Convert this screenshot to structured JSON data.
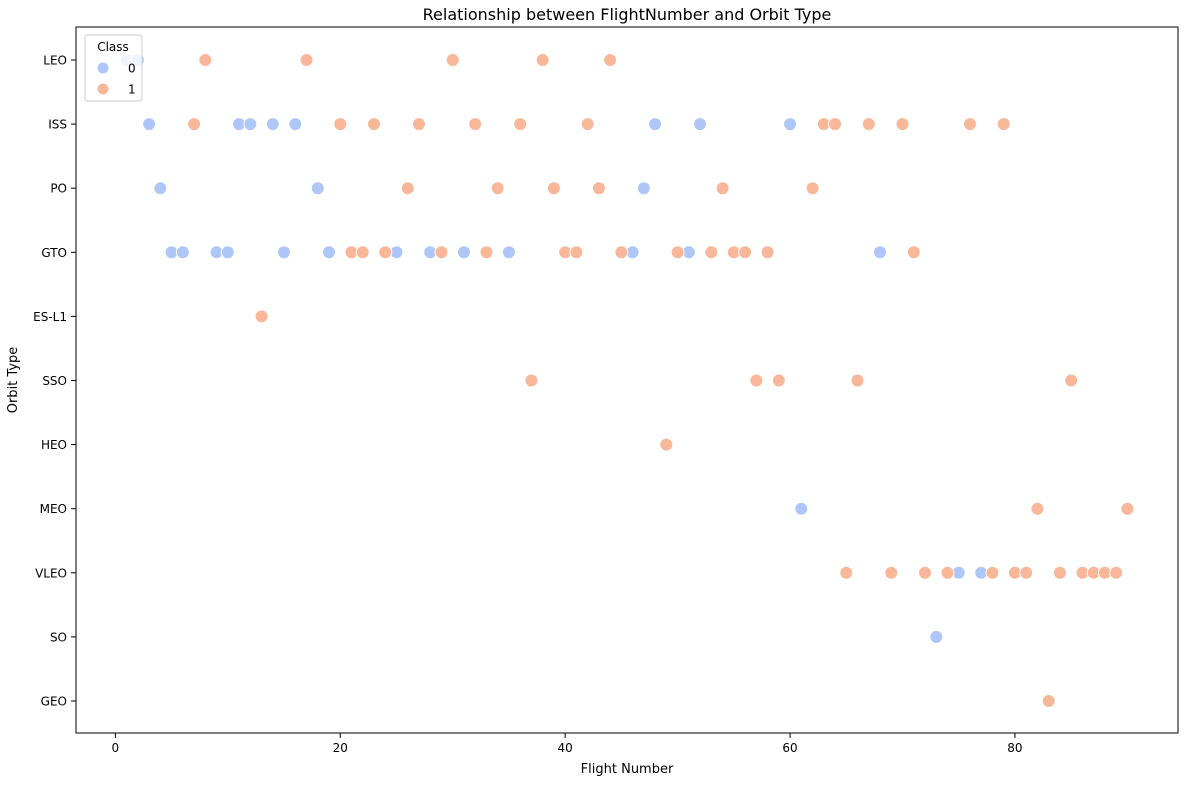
{
  "chart_data": {
    "type": "scatter",
    "title": "Relationship between FlightNumber and Orbit Type",
    "xlabel": "Flight Number",
    "ylabel": "Orbit Type",
    "xlim": [
      -3.5,
      94.5
    ],
    "x_ticks": [
      0,
      20,
      40,
      60,
      80
    ],
    "categories": [
      "LEO",
      "ISS",
      "PO",
      "GTO",
      "ES-L1",
      "SSO",
      "HEO",
      "MEO",
      "VLEO",
      "SO",
      "GEO"
    ],
    "grid": false,
    "legend": {
      "title": "Class",
      "placement": "top-left"
    },
    "colors": {
      "0": "#aec7f8",
      "1": "#f7b798"
    },
    "series": [
      {
        "name": "0",
        "points": [
          {
            "x": 1,
            "y": "LEO"
          },
          {
            "x": 2,
            "y": "LEO"
          },
          {
            "x": 3,
            "y": "ISS"
          },
          {
            "x": 11,
            "y": "ISS"
          },
          {
            "x": 12,
            "y": "ISS"
          },
          {
            "x": 14,
            "y": "ISS"
          },
          {
            "x": 16,
            "y": "ISS"
          },
          {
            "x": 48,
            "y": "ISS"
          },
          {
            "x": 52,
            "y": "ISS"
          },
          {
            "x": 60,
            "y": "ISS"
          },
          {
            "x": 4,
            "y": "PO"
          },
          {
            "x": 18,
            "y": "PO"
          },
          {
            "x": 47,
            "y": "PO"
          },
          {
            "x": 5,
            "y": "GTO"
          },
          {
            "x": 6,
            "y": "GTO"
          },
          {
            "x": 9,
            "y": "GTO"
          },
          {
            "x": 10,
            "y": "GTO"
          },
          {
            "x": 15,
            "y": "GTO"
          },
          {
            "x": 19,
            "y": "GTO"
          },
          {
            "x": 25,
            "y": "GTO"
          },
          {
            "x": 28,
            "y": "GTO"
          },
          {
            "x": 31,
            "y": "GTO"
          },
          {
            "x": 35,
            "y": "GTO"
          },
          {
            "x": 46,
            "y": "GTO"
          },
          {
            "x": 51,
            "y": "GTO"
          },
          {
            "x": 68,
            "y": "GTO"
          },
          {
            "x": 61,
            "y": "MEO"
          },
          {
            "x": 75,
            "y": "VLEO"
          },
          {
            "x": 77,
            "y": "VLEO"
          },
          {
            "x": 73,
            "y": "SO"
          }
        ]
      },
      {
        "name": "1",
        "points": [
          {
            "x": 8,
            "y": "LEO"
          },
          {
            "x": 17,
            "y": "LEO"
          },
          {
            "x": 30,
            "y": "LEO"
          },
          {
            "x": 38,
            "y": "LEO"
          },
          {
            "x": 44,
            "y": "LEO"
          },
          {
            "x": 7,
            "y": "ISS"
          },
          {
            "x": 20,
            "y": "ISS"
          },
          {
            "x": 23,
            "y": "ISS"
          },
          {
            "x": 27,
            "y": "ISS"
          },
          {
            "x": 32,
            "y": "ISS"
          },
          {
            "x": 36,
            "y": "ISS"
          },
          {
            "x": 42,
            "y": "ISS"
          },
          {
            "x": 63,
            "y": "ISS"
          },
          {
            "x": 64,
            "y": "ISS"
          },
          {
            "x": 67,
            "y": "ISS"
          },
          {
            "x": 70,
            "y": "ISS"
          },
          {
            "x": 76,
            "y": "ISS"
          },
          {
            "x": 79,
            "y": "ISS"
          },
          {
            "x": 26,
            "y": "PO"
          },
          {
            "x": 34,
            "y": "PO"
          },
          {
            "x": 39,
            "y": "PO"
          },
          {
            "x": 43,
            "y": "PO"
          },
          {
            "x": 54,
            "y": "PO"
          },
          {
            "x": 62,
            "y": "PO"
          },
          {
            "x": 21,
            "y": "GTO"
          },
          {
            "x": 22,
            "y": "GTO"
          },
          {
            "x": 24,
            "y": "GTO"
          },
          {
            "x": 29,
            "y": "GTO"
          },
          {
            "x": 33,
            "y": "GTO"
          },
          {
            "x": 40,
            "y": "GTO"
          },
          {
            "x": 41,
            "y": "GTO"
          },
          {
            "x": 45,
            "y": "GTO"
          },
          {
            "x": 50,
            "y": "GTO"
          },
          {
            "x": 53,
            "y": "GTO"
          },
          {
            "x": 55,
            "y": "GTO"
          },
          {
            "x": 56,
            "y": "GTO"
          },
          {
            "x": 58,
            "y": "GTO"
          },
          {
            "x": 71,
            "y": "GTO"
          },
          {
            "x": 13,
            "y": "ES-L1"
          },
          {
            "x": 37,
            "y": "SSO"
          },
          {
            "x": 57,
            "y": "SSO"
          },
          {
            "x": 59,
            "y": "SSO"
          },
          {
            "x": 66,
            "y": "SSO"
          },
          {
            "x": 85,
            "y": "SSO"
          },
          {
            "x": 49,
            "y": "HEO"
          },
          {
            "x": 82,
            "y": "MEO"
          },
          {
            "x": 90,
            "y": "MEO"
          },
          {
            "x": 65,
            "y": "VLEO"
          },
          {
            "x": 69,
            "y": "VLEO"
          },
          {
            "x": 72,
            "y": "VLEO"
          },
          {
            "x": 74,
            "y": "VLEO"
          },
          {
            "x": 78,
            "y": "VLEO"
          },
          {
            "x": 80,
            "y": "VLEO"
          },
          {
            "x": 81,
            "y": "VLEO"
          },
          {
            "x": 84,
            "y": "VLEO"
          },
          {
            "x": 86,
            "y": "VLEO"
          },
          {
            "x": 87,
            "y": "VLEO"
          },
          {
            "x": 88,
            "y": "VLEO"
          },
          {
            "x": 89,
            "y": "VLEO"
          },
          {
            "x": 83,
            "y": "GEO"
          }
        ]
      }
    ]
  }
}
